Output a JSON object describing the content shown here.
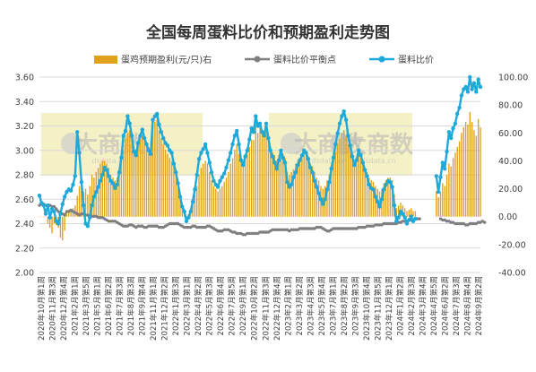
{
  "chart_data": {
    "type": "line",
    "title": "全国每周蛋料比价和预期盈利走势图",
    "legend": {
      "placement": "top",
      "entries": [
        "蛋鸡预期盈利(元/只)右",
        "蛋料比价平衡点",
        "蛋料比价"
      ]
    },
    "watermark": {
      "text": "大商数",
      "sub": "dsdata.cn",
      "repeat": 3
    },
    "colors": {
      "bar": "#E0A21E",
      "breakeven": "#7F7F7F",
      "ratio": "#1FA9D9",
      "grid": "#D9D9D9",
      "watermark_box": "#F3EDB9"
    },
    "ylim_left": [
      2.0,
      3.6
    ],
    "yticks_left": [
      "2.00",
      "2.20",
      "2.40",
      "2.60",
      "2.80",
      "3.00",
      "3.20",
      "3.40",
      "3.60"
    ],
    "ylim_right": [
      -40,
      100
    ],
    "yticks_right": [
      "-40.00",
      "-20.00",
      "0.00",
      "20.00",
      "40.00",
      "60.00",
      "80.00",
      "100.00"
    ],
    "x_tick_labels": [
      "2020年10月第1周",
      "2020年11月第3周",
      "2020年12月第4周",
      "2021年2月第1周",
      "2021年3月第5周",
      "2021年5月第1周",
      "2021年6月第2周",
      "2021年7月第3周",
      "2021年8月第3周",
      "2021年9月第4周",
      "2021年11月第1周",
      "2021年12月第2周",
      "2022年1月第3周",
      "2022年3月第1周",
      "2022年4月第2周",
      "2022年5月第3周",
      "2022年6月第4周",
      "2022年7月第5周",
      "2022年9月第1周",
      "2022年10月第2周",
      "2022年11月第3周",
      "2022年12月第4周",
      "2023年2月第1周",
      "2023年3月第2周",
      "2023年4月第3周",
      "2023年5月第4周",
      "2023年7月第1周",
      "2023年8月第2周",
      "2023年9月第3周",
      "2023年10月第4周",
      "2023年11月第5周",
      "2023年12月第1周",
      "2024年1月第2周",
      "2024年2月第3周",
      "2024年3月第4周",
      "2024年4月第5周",
      "2024年6月第2周",
      "2024年7月第3周",
      "2024年8月第4周",
      "2024年9月第2周"
    ],
    "ratio_series": [
      2.63,
      2.57,
      2.55,
      2.48,
      2.55,
      2.45,
      2.52,
      2.5,
      2.42,
      2.4,
      2.48,
      2.56,
      2.62,
      2.66,
      2.68,
      2.67,
      2.72,
      2.79,
      3.15,
      2.98,
      2.74,
      2.55,
      2.4,
      2.38,
      2.45,
      2.55,
      2.62,
      2.66,
      2.7,
      2.75,
      2.8,
      2.86,
      2.84,
      2.79,
      2.75,
      2.73,
      2.69,
      2.72,
      2.82,
      2.94,
      3.12,
      3.16,
      3.28,
      3.22,
      3.12,
      2.99,
      2.96,
      3.06,
      3.12,
      3.17,
      3.1,
      3.05,
      3.0,
      2.97,
      3.25,
      3.28,
      3.3,
      3.21,
      3.15,
      3.1,
      3.06,
      3.04,
      3.0,
      2.98,
      2.89,
      2.82,
      2.73,
      2.62,
      2.54,
      2.5,
      2.42,
      2.45,
      2.5,
      2.58,
      2.68,
      2.8,
      2.93,
      2.98,
      3.01,
      3.05,
      2.98,
      2.9,
      2.82,
      2.75,
      2.72,
      2.7,
      2.75,
      2.78,
      2.81,
      2.86,
      2.92,
      2.98,
      3.05,
      3.12,
      3.16,
      3.05,
      2.92,
      2.88,
      2.95,
      3.0,
      3.09,
      3.18,
      3.15,
      3.28,
      3.2,
      3.22,
      3.15,
      3.12,
      3.22,
      3.1,
      3.0,
      2.95,
      2.9,
      2.85,
      2.92,
      3.0,
      2.94,
      2.9,
      2.74,
      2.7,
      2.72,
      2.78,
      2.82,
      2.88,
      2.92,
      2.96,
      3.0,
      2.98,
      2.93,
      2.86,
      2.82,
      2.75,
      2.7,
      2.65,
      2.6,
      2.56,
      2.6,
      2.68,
      2.74,
      2.85,
      2.94,
      3.05,
      3.14,
      3.22,
      3.28,
      3.32,
      3.25,
      3.12,
      3.04,
      2.95,
      2.88,
      2.92,
      3.0,
      2.96,
      2.9,
      2.84,
      2.79,
      2.72,
      2.69,
      2.68,
      2.62,
      2.58,
      2.54,
      2.6,
      2.68,
      2.72,
      2.75,
      2.74,
      2.7,
      2.55,
      2.42,
      2.45,
      2.5,
      2.48,
      2.45,
      2.4,
      2.43,
      2.46,
      2.42,
      2.44,
      null,
      null,
      null,
      null,
      null,
      null,
      null,
      null,
      null,
      2.79,
      2.66,
      2.78,
      2.9,
      2.85,
      2.99,
      3.15,
      3.1,
      3.18,
      3.22,
      3.3,
      3.35,
      3.45,
      3.5,
      3.52,
      3.48,
      3.6,
      3.5,
      3.55,
      3.48,
      3.58,
      3.52
    ],
    "breakeven_series": [
      2.55,
      2.56,
      2.56,
      2.55,
      2.55,
      2.55,
      2.54,
      2.54,
      2.52,
      2.5,
      2.49,
      2.48,
      2.47,
      2.5,
      2.5,
      2.51,
      2.5,
      2.49,
      2.48,
      2.47,
      2.48,
      2.48,
      2.47,
      2.47,
      2.46,
      2.46,
      2.46,
      2.46,
      2.45,
      2.45,
      2.45,
      2.44,
      2.43,
      2.42,
      2.42,
      2.42,
      2.42,
      2.41,
      2.4,
      2.39,
      2.38,
      2.38,
      2.38,
      2.39,
      2.39,
      2.38,
      2.37,
      2.38,
      2.38,
      2.38,
      2.37,
      2.37,
      2.38,
      2.38,
      2.38,
      2.38,
      2.38,
      2.37,
      2.37,
      2.37,
      2.38,
      2.39,
      2.4,
      2.4,
      2.4,
      2.4,
      2.4,
      2.39,
      2.38,
      2.37,
      2.37,
      2.37,
      2.37,
      2.38,
      2.38,
      2.37,
      2.37,
      2.37,
      2.37,
      2.37,
      2.38,
      2.38,
      2.37,
      2.36,
      2.35,
      2.34,
      2.34,
      2.34,
      2.35,
      2.35,
      2.35,
      2.34,
      2.33,
      2.33,
      2.32,
      2.32,
      2.32,
      2.31,
      2.31,
      2.32,
      2.32,
      2.32,
      2.32,
      2.32,
      2.32,
      2.33,
      2.33,
      2.33,
      2.33,
      2.33,
      2.34,
      2.35,
      2.35,
      2.35,
      2.35,
      2.35,
      2.35,
      2.35,
      2.35,
      2.34,
      2.35,
      2.35,
      2.35,
      2.35,
      2.36,
      2.36,
      2.36,
      2.36,
      2.36,
      2.36,
      2.36,
      2.36,
      2.37,
      2.37,
      2.37,
      2.36,
      2.35,
      2.34,
      2.34,
      2.35,
      2.36,
      2.36,
      2.36,
      2.36,
      2.36,
      2.36,
      2.36,
      2.36,
      2.36,
      2.36,
      2.36,
      2.36,
      2.37,
      2.37,
      2.37,
      2.37,
      2.38,
      2.38,
      2.38,
      2.38,
      2.39,
      2.39,
      2.39,
      2.39,
      2.4,
      2.4,
      2.4,
      2.4,
      2.4,
      2.4,
      2.4,
      2.41,
      2.41,
      2.42,
      2.42,
      2.42,
      2.43,
      2.43,
      2.43,
      2.44,
      2.44,
      2.44,
      null,
      null,
      null,
      null,
      null,
      null,
      null,
      null,
      null,
      2.44,
      2.43,
      2.43,
      2.42,
      2.42,
      2.41,
      2.41,
      2.4,
      2.4,
      2.4,
      2.4,
      2.4,
      2.39,
      2.39,
      2.4,
      2.4,
      2.4,
      2.4,
      2.41,
      2.41,
      2.42,
      2.41
    ],
    "profit_series": [
      0.0,
      0.0,
      0.0,
      0.0,
      -5.0,
      -8.0,
      -12.0,
      -5.0,
      -6.0,
      -8.0,
      -15.0,
      -17.0,
      -10.0,
      2.0,
      5.0,
      4.0,
      6.0,
      8.0,
      15.0,
      22.0,
      25.0,
      18.0,
      20.0,
      16.0,
      22.0,
      30.0,
      28.0,
      32.0,
      35.0,
      38.0,
      40.0,
      40.0,
      38.0,
      35.0,
      30.0,
      28.0,
      26.0,
      28.0,
      32.0,
      40.0,
      48.0,
      56.0,
      60.0,
      62.0,
      58.0,
      50.0,
      48.0,
      52.0,
      55.0,
      58.0,
      55.0,
      52.0,
      50.0,
      48.0,
      65.0,
      68.0,
      70.0,
      62.0,
      56.0,
      52.0,
      48.0,
      45.0,
      42.0,
      40.0,
      36.0,
      32.0,
      26.0,
      18.0,
      10.0,
      5.0,
      0.0,
      2.0,
      5.0,
      10.0,
      16.0,
      22.0,
      30.0,
      35.0,
      38.0,
      40.0,
      38.0,
      32.0,
      26.0,
      22.0,
      20.0,
      18.0,
      20.0,
      22.0,
      25.0,
      28.0,
      32.0,
      38.0,
      42.0,
      48.0,
      52.0,
      45.0,
      40.0,
      38.0,
      42.0,
      45.0,
      50.0,
      55.0,
      55.0,
      68.0,
      60.0,
      65.0,
      60.0,
      58.0,
      62.0,
      55.0,
      50.0,
      46.0,
      44.0,
      40.0,
      44.0,
      48.0,
      45.0,
      42.0,
      32.0,
      30.0,
      32.0,
      34.0,
      38.0,
      40.0,
      42.0,
      44.0,
      46.0,
      45.0,
      42.0,
      38.0,
      36.0,
      32.0,
      28.0,
      26.0,
      22.0,
      20.0,
      22.0,
      26.0,
      30.0,
      36.0,
      42.0,
      46.0,
      52.0,
      56.0,
      60.0,
      62.0,
      58.0,
      52.0,
      46.0,
      42.0,
      38.0,
      40.0,
      44.0,
      42.0,
      38.0,
      35.0,
      32.0,
      28.0,
      26.0,
      25.0,
      22.0,
      20.0,
      18.0,
      20.0,
      24.0,
      26.0,
      28.0,
      28.0,
      26.0,
      16.0,
      6.0,
      8.0,
      10.0,
      8.0,
      6.0,
      4.0,
      5.0,
      6.0,
      4.0,
      4.0,
      null,
      null,
      null,
      null,
      null,
      null,
      null,
      null,
      null,
      18.0,
      14.0,
      18.0,
      24.0,
      22.0,
      30.0,
      38.0,
      36.0,
      42.0,
      46.0,
      50.0,
      54.0,
      60.0,
      64.0,
      68.0,
      66.0,
      75.0,
      68.0,
      62.0,
      58.0,
      70.0,
      64.0
    ]
  }
}
